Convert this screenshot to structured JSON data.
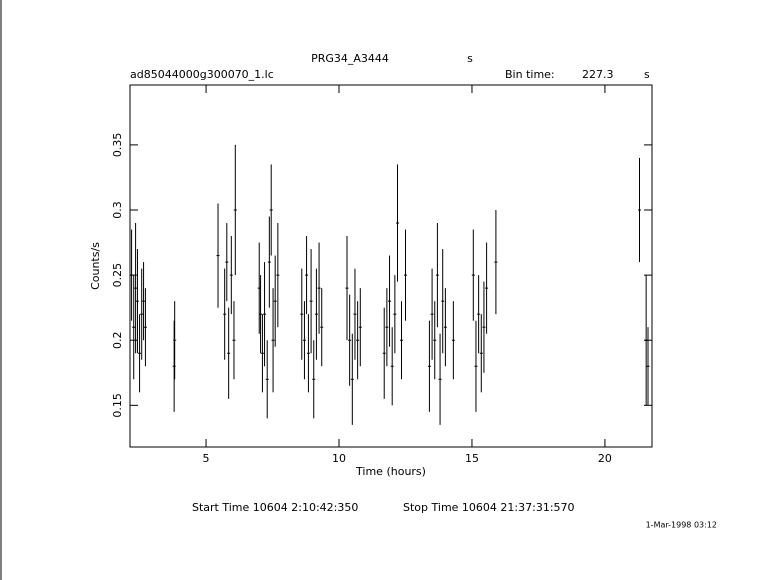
{
  "chart_data": {
    "type": "errorbar",
    "title": "PRG34_A3444",
    "title_unit": "s",
    "subtitle": "ad85044000g300070_1.lc",
    "bin_time_label": "Bin time:",
    "bin_time": 227.3,
    "bin_time_unit": "s",
    "x_label": "Time (hours)",
    "y_label": "Counts/s",
    "start_time": "Start Time 10604  2:10:42:350",
    "stop_time": "Stop Time 10604 21:37:31:570",
    "date": "1-Mar-1998 03:12",
    "xlim": [
      2.14,
      21.77
    ],
    "ylim": [
      0.118,
      0.396
    ],
    "xticks": [
      5,
      10,
      15,
      20
    ],
    "yticks": [
      0.15,
      0.2,
      0.25,
      0.3,
      0.35
    ],
    "color": "#000000",
    "x": [
      2.2,
      2.28,
      2.35,
      2.42,
      2.5,
      2.58,
      2.65,
      2.72,
      3.8,
      3.82,
      5.45,
      5.7,
      5.78,
      5.85,
      5.95,
      6.05,
      6.1,
      7.0,
      7.05,
      7.12,
      7.2,
      7.3,
      7.38,
      7.45,
      7.52,
      7.6,
      7.7,
      8.6,
      8.7,
      8.78,
      8.85,
      8.95,
      9.05,
      9.15,
      9.25,
      9.35,
      10.3,
      10.4,
      10.5,
      10.6,
      10.7,
      10.8,
      11.7,
      11.8,
      11.9,
      12.0,
      12.1,
      12.2,
      12.35,
      12.5,
      13.4,
      13.5,
      13.6,
      13.7,
      13.8,
      13.9,
      14.0,
      14.3,
      15.05,
      15.15,
      15.25,
      15.35,
      15.45,
      15.55,
      15.9,
      21.3,
      21.55,
      21.62
    ],
    "values": [
      0.25,
      0.21,
      0.24,
      0.23,
      0.19,
      0.22,
      0.23,
      0.21,
      0.18,
      0.2,
      0.265,
      0.22,
      0.26,
      0.19,
      0.25,
      0.2,
      0.3,
      0.24,
      0.22,
      0.19,
      0.22,
      0.17,
      0.26,
      0.3,
      0.2,
      0.23,
      0.25,
      0.22,
      0.2,
      0.25,
      0.19,
      0.23,
      0.17,
      0.22,
      0.24,
      0.21,
      0.24,
      0.2,
      0.17,
      0.22,
      0.2,
      0.21,
      0.19,
      0.21,
      0.23,
      0.18,
      0.22,
      0.29,
      0.2,
      0.25,
      0.18,
      0.22,
      0.2,
      0.25,
      0.17,
      0.23,
      0.21,
      0.2,
      0.25,
      0.18,
      0.22,
      0.19,
      0.21,
      0.24,
      0.26,
      0.3,
      0.2,
      0.18
    ],
    "errors": [
      0.035,
      0.04,
      0.05,
      0.04,
      0.03,
      0.035,
      0.03,
      0.03,
      0.035,
      0.03,
      0.04,
      0.035,
      0.03,
      0.035,
      0.03,
      0.03,
      0.05,
      0.035,
      0.03,
      0.03,
      0.04,
      0.03,
      0.035,
      0.035,
      0.04,
      0.035,
      0.04,
      0.035,
      0.03,
      0.03,
      0.03,
      0.04,
      0.03,
      0.035,
      0.035,
      0.03,
      0.04,
      0.035,
      0.035,
      0.035,
      0.03,
      0.03,
      0.035,
      0.03,
      0.035,
      0.03,
      0.03,
      0.045,
      0.03,
      0.035,
      0.035,
      0.035,
      0.03,
      0.04,
      0.035,
      0.04,
      0.03,
      0.03,
      0.035,
      0.035,
      0.03,
      0.03,
      0.035,
      0.035,
      0.04,
      0.04,
      0.05,
      0.03
    ]
  }
}
